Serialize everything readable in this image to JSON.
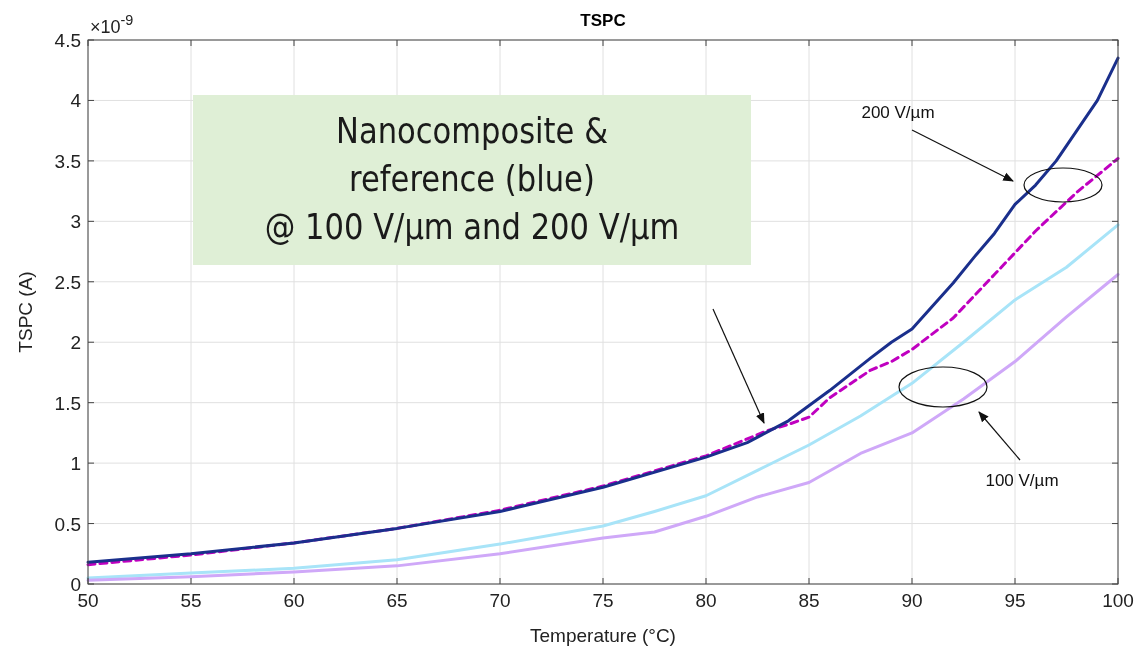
{
  "chart_data": {
    "type": "line",
    "title": "TSPC",
    "xlabel": "Temperature (°C)",
    "ylabel": "TSPC (A)",
    "xlim": [
      50,
      100
    ],
    "xticks": [
      50,
      55,
      60,
      65,
      70,
      75,
      80,
      85,
      90,
      95,
      100
    ],
    "ylim": [
      0,
      4.5
    ],
    "yticks": [
      0,
      0.5,
      1,
      1.5,
      2,
      2.5,
      3,
      3.5,
      4,
      4.5
    ],
    "grid": true,
    "annotations": [
      "×10$^{-9}$",
      "Nanocomposite &\nreference (blue)\n@ 100 V/µm and 200 V/µm",
      "200 V/µm",
      "100 V/µm"
    ],
    "series": [
      {
        "color": "#a8e4f8",
        "line_style": "solid",
        "x": [
          50,
          55,
          60,
          65,
          70,
          75,
          77.5,
          80,
          82.5,
          85,
          87.5,
          90,
          92.5,
          95,
          97.5,
          100
        ],
        "values": [
          0.05,
          0.09,
          0.13,
          0.2,
          0.33,
          0.48,
          0.6,
          0.73,
          0.94,
          1.15,
          1.39,
          1.66,
          2.0,
          2.35,
          2.62,
          2.97
        ]
      },
      {
        "color": "#cfa8f8",
        "line_style": "solid",
        "x": [
          50,
          55,
          60,
          65,
          70,
          75,
          77.5,
          80,
          82.5,
          85,
          87.5,
          90,
          92.5,
          95,
          97.5,
          100
        ],
        "values": [
          0.03,
          0.06,
          0.1,
          0.15,
          0.25,
          0.38,
          0.43,
          0.56,
          0.72,
          0.84,
          1.08,
          1.25,
          1.53,
          1.84,
          2.21,
          2.56
        ]
      },
      {
        "color": "#c000c0",
        "line_style": "dashed",
        "x": [
          50,
          55,
          60,
          65,
          70,
          75,
          80,
          83,
          84,
          85,
          86,
          88,
          89,
          90,
          92,
          94,
          96,
          98,
          100
        ],
        "values": [
          0.16,
          0.24,
          0.34,
          0.46,
          0.61,
          0.81,
          1.06,
          1.27,
          1.32,
          1.38,
          1.54,
          1.77,
          1.84,
          1.94,
          2.2,
          2.56,
          2.92,
          3.24,
          3.52
        ]
      },
      {
        "color": "#1a2f8c",
        "line_style": "solid",
        "x": [
          50,
          55,
          60,
          65,
          70,
          75,
          80,
          82,
          84,
          86,
          88,
          89,
          90,
          92,
          93,
          94,
          95,
          96,
          97,
          98,
          99,
          100
        ],
        "values": [
          0.18,
          0.25,
          0.34,
          0.46,
          0.6,
          0.8,
          1.05,
          1.17,
          1.35,
          1.6,
          1.87,
          2.0,
          2.11,
          2.49,
          2.7,
          2.9,
          3.14,
          3.3,
          3.5,
          3.75,
          4.0,
          4.35
        ]
      }
    ]
  }
}
